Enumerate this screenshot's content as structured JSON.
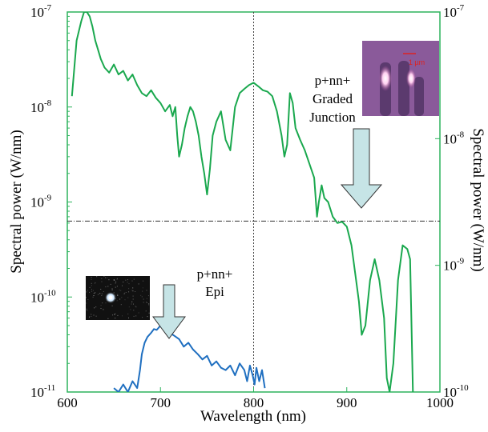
{
  "chart_data": {
    "type": "line",
    "xlabel": "Wavelength (nm)",
    "ylabel_left": "Spectral power (W/nm)",
    "ylabel_right": "Spectral power (W/nm)",
    "xlim": [
      600,
      1000
    ],
    "xticks": [
      {
        "value": 600,
        "label": "600"
      },
      {
        "value": 700,
        "label": "700"
      },
      {
        "value": 800,
        "label": "800"
      },
      {
        "value": 900,
        "label": "900"
      },
      {
        "value": 1000,
        "label": "1000"
      }
    ],
    "yleft": {
      "scale": "log",
      "lim": [
        1e-11,
        1e-07
      ],
      "ticks": [
        {
          "value": 1e-11,
          "base": "10",
          "exp": "-11"
        },
        {
          "value": 1e-10,
          "base": "10",
          "exp": "-10"
        },
        {
          "value": 1e-09,
          "base": "10",
          "exp": "-9"
        },
        {
          "value": 1e-08,
          "base": "10",
          "exp": "-8"
        },
        {
          "value": 1e-07,
          "base": "10",
          "exp": "-7"
        }
      ]
    },
    "yright": {
      "scale": "log",
      "lim": [
        1e-10,
        1e-07
      ],
      "ticks": [
        {
          "value": 1e-10,
          "base": "10",
          "exp": "-10"
        },
        {
          "value": 1e-09,
          "base": "10",
          "exp": "-9"
        },
        {
          "value": 1e-08,
          "base": "10",
          "exp": "-8"
        },
        {
          "value": 1e-07,
          "base": "10",
          "exp": "-7"
        }
      ]
    },
    "reference_lines": {
      "vertical_x": 800,
      "horizontal_y_left": 6.3e-10
    },
    "series": [
      {
        "axis": "left",
        "color": "#1aa84e",
        "x": [
          605,
          610,
          615,
          618,
          621,
          624,
          627,
          630,
          633,
          636,
          640,
          645,
          650,
          655,
          660,
          665,
          670,
          675,
          680,
          685,
          690,
          695,
          700,
          705,
          710,
          713,
          716,
          718,
          720,
          723,
          726,
          729,
          732,
          735,
          738,
          741,
          744,
          747,
          750,
          753,
          756,
          760,
          765,
          770,
          775,
          780,
          785,
          790,
          795,
          800,
          805,
          810,
          815,
          820,
          825,
          830,
          833,
          836,
          839,
          842,
          845,
          850,
          855,
          860,
          865,
          868,
          870,
          873,
          876,
          880,
          885,
          890,
          895,
          900,
          905,
          910,
          913,
          916,
          920,
          925,
          930,
          935,
          940,
          943,
          946,
          950,
          955,
          960,
          965,
          968,
          971
        ],
        "y": [
          1.3e-08,
          5e-08,
          8e-08,
          1e-07,
          1e-07,
          9e-08,
          7e-08,
          5e-08,
          4e-08,
          3.2e-08,
          2.6e-08,
          2.3e-08,
          2.8e-08,
          2.2e-08,
          2.4e-08,
          1.9e-08,
          2.2e-08,
          1.7e-08,
          1.4e-08,
          1.3e-08,
          1.5e-08,
          1.25e-08,
          1.1e-08,
          9e-09,
          1.05e-08,
          8e-09,
          1e-08,
          5e-09,
          3e-09,
          4e-09,
          6e-09,
          8e-09,
          1e-08,
          9e-09,
          7e-09,
          5e-09,
          3e-09,
          2e-09,
          1.2e-09,
          2.2e-09,
          5e-09,
          7e-09,
          9e-09,
          4.5e-09,
          3.5e-09,
          1e-08,
          1.4e-08,
          1.55e-08,
          1.7e-08,
          1.8e-08,
          1.65e-08,
          1.5e-08,
          1.45e-08,
          1.3e-08,
          9e-09,
          5e-09,
          3e-09,
          4e-09,
          1.4e-08,
          1.1e-08,
          6e-09,
          4.5e-09,
          3.5e-09,
          2.5e-09,
          1.8e-09,
          7e-10,
          1e-09,
          1.5e-09,
          1.1e-09,
          1e-09,
          7e-10,
          6e-10,
          6.2e-10,
          5.5e-10,
          3.5e-10,
          1.5e-10,
          9e-11,
          4e-11,
          5e-11,
          1.5e-10,
          2.5e-10,
          1.5e-10,
          6e-11,
          1.4e-11,
          1e-11,
          2e-11,
          1.5e-10,
          3.5e-10,
          3.2e-10,
          2.5e-10,
          1e-11
        ]
      },
      {
        "axis": "left",
        "color": "#1f6fc0",
        "x": [
          650,
          655,
          660,
          665,
          670,
          675,
          678,
          680,
          683,
          686,
          690,
          693,
          696,
          700,
          703,
          706,
          710,
          715,
          720,
          725,
          730,
          735,
          740,
          745,
          750,
          755,
          760,
          765,
          770,
          775,
          780,
          785,
          790,
          793,
          796,
          799,
          801,
          803,
          806,
          809,
          812
        ],
        "y": [
          1.1e-11,
          1e-11,
          1.2e-11,
          1e-11,
          1.3e-11,
          1.1e-11,
          1.7e-11,
          2.5e-11,
          3.3e-11,
          3.8e-11,
          4.2e-11,
          4.6e-11,
          4.5e-11,
          5e-11,
          4.7e-11,
          4.5e-11,
          4.2e-11,
          3.9e-11,
          3.6e-11,
          3e-11,
          3.3e-11,
          2.8e-11,
          2.5e-11,
          2.2e-11,
          2.4e-11,
          1.9e-11,
          2.1e-11,
          1.8e-11,
          1.7e-11,
          1.9e-11,
          1.5e-11,
          2e-11,
          1.7e-11,
          1.3e-11,
          1.9e-11,
          1.5e-11,
          1.2e-11,
          1.8e-11,
          1.3e-11,
          1.7e-11,
          1.1e-11
        ]
      }
    ],
    "annotations": {
      "graded_line1": "p+nn+",
      "graded_line2": "Graded",
      "graded_line3": "Junction",
      "epi_line1": "p+nn+",
      "epi_line2": "Epi",
      "scale_bar": "1 µm"
    }
  }
}
